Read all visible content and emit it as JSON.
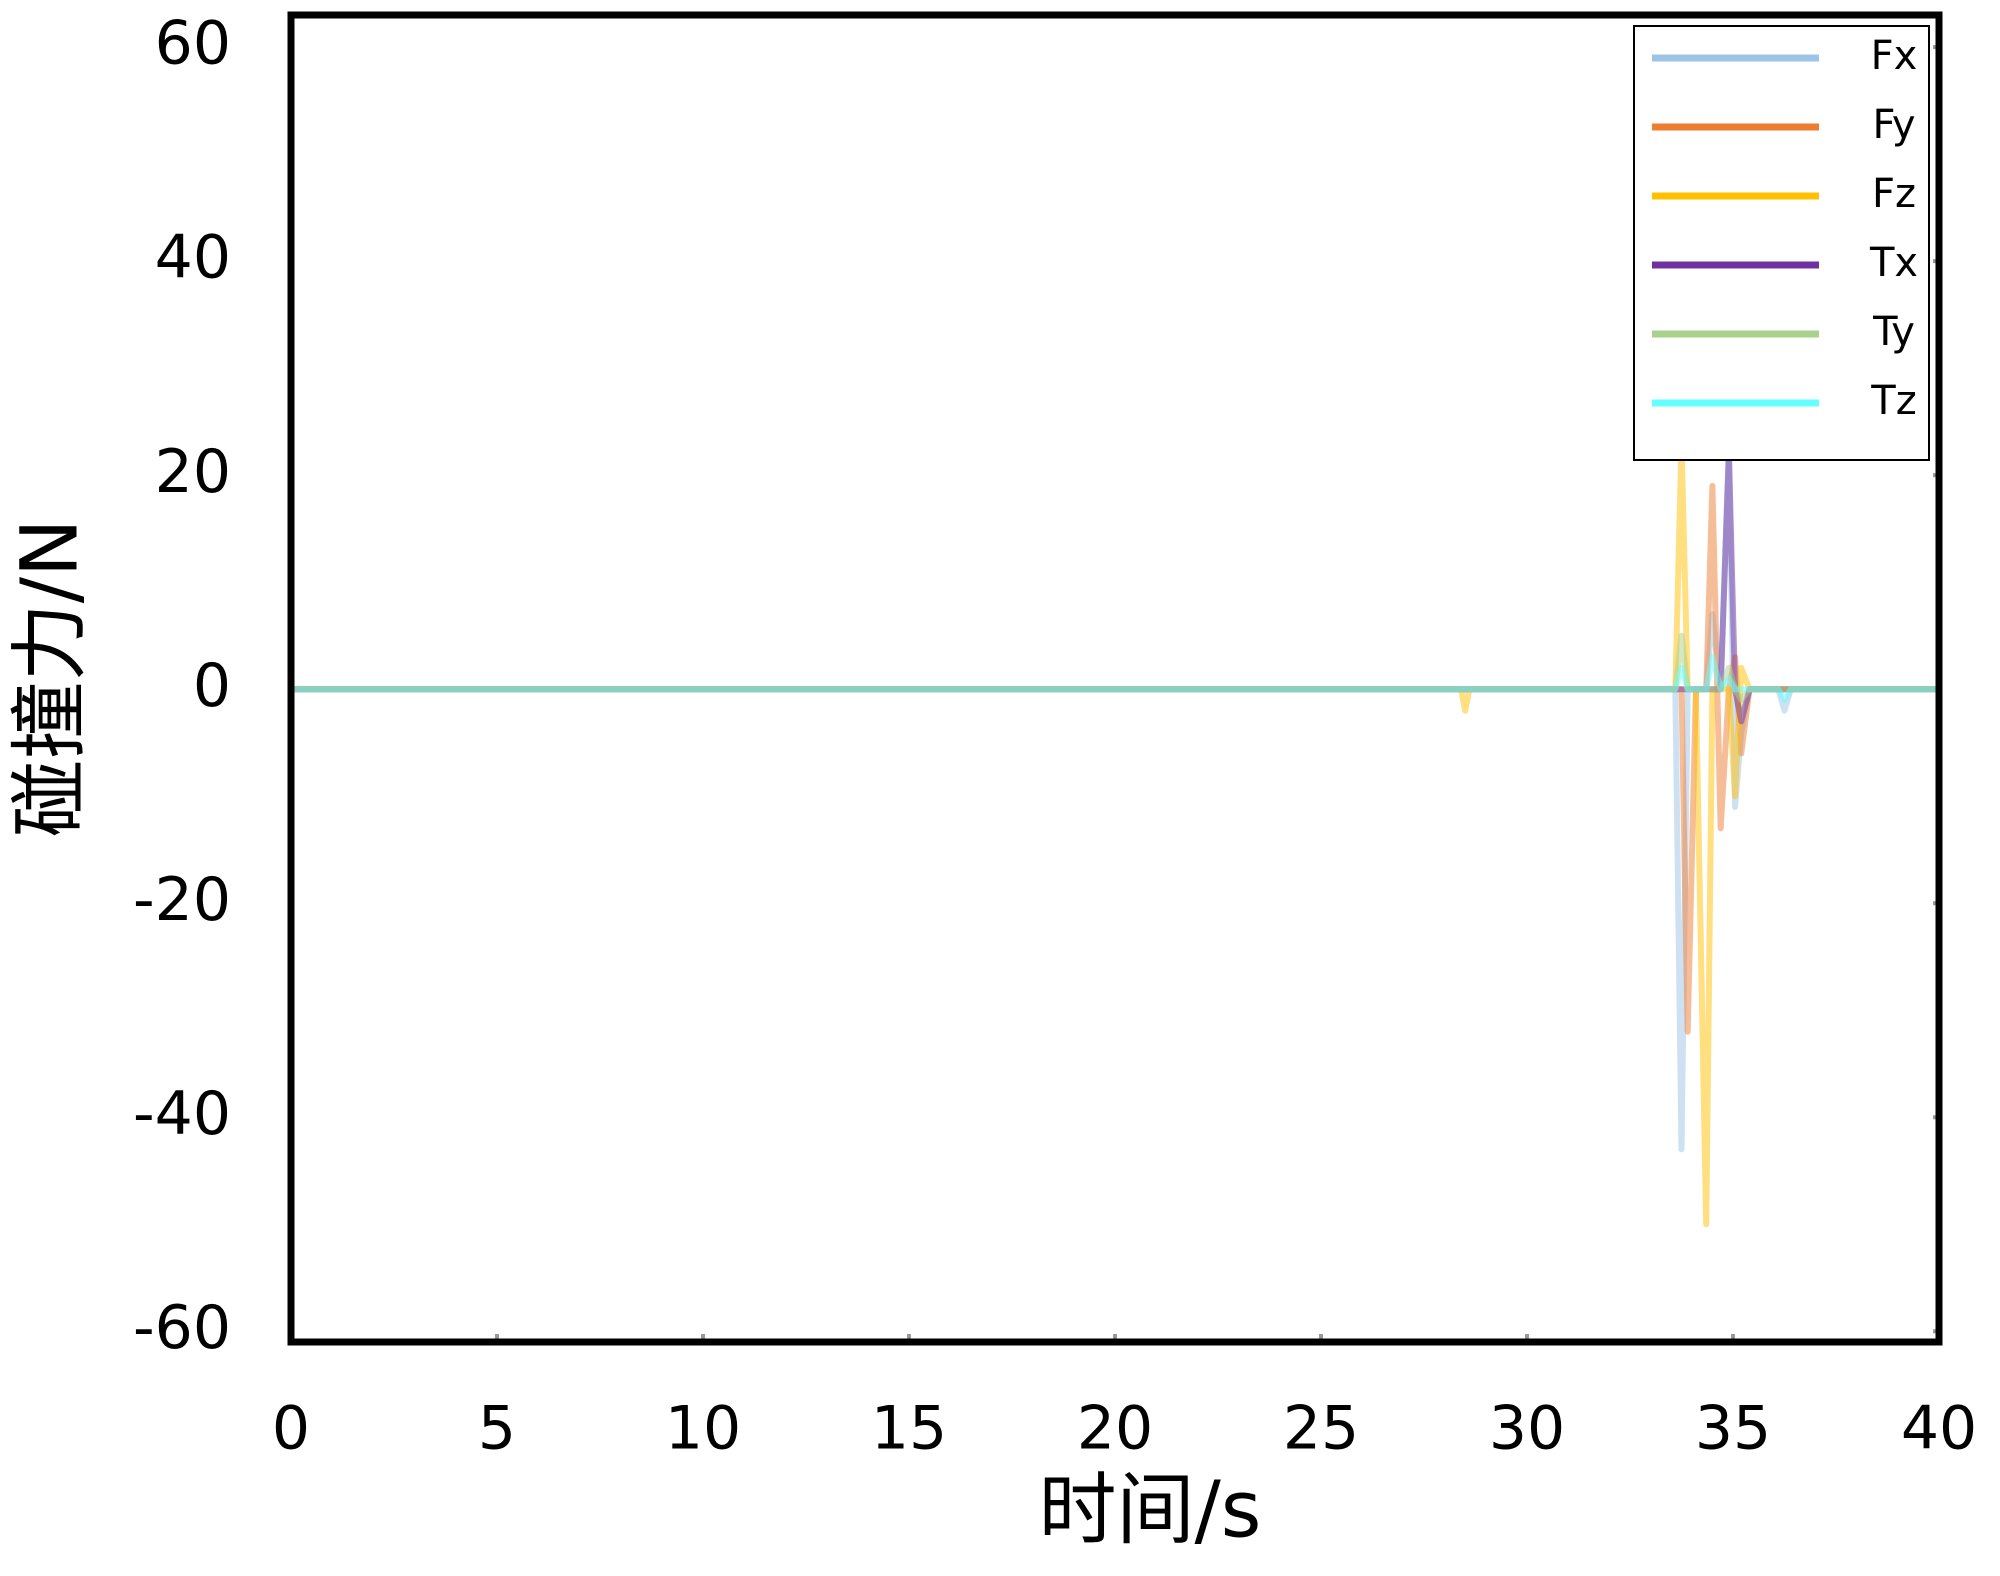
{
  "chart_data": {
    "type": "line",
    "xlabel": "时间/s",
    "ylabel": "碰撞力/N",
    "x": [
      0,
      28.4,
      28.5,
      28.6,
      33.6,
      33.75,
      33.9,
      34.1,
      34.35,
      34.5,
      34.7,
      34.9,
      35.05,
      35.2,
      35.4,
      36.1,
      36.25,
      36.4,
      40
    ],
    "series": [
      {
        "name": "Fx",
        "color": "#9dc3e6",
        "values": [
          0,
          0,
          0,
          0,
          0,
          -43,
          0,
          0,
          0,
          7,
          0,
          23,
          -11,
          -4,
          0,
          0,
          -2,
          0,
          0
        ]
      },
      {
        "name": "Fy",
        "color": "#ed7d31",
        "values": [
          0,
          0,
          0,
          0,
          0,
          0,
          -32,
          0,
          0,
          19,
          -13,
          0,
          3,
          -6,
          0,
          0,
          0,
          0,
          0
        ]
      },
      {
        "name": "Fz",
        "color": "#ffc000",
        "values": [
          0,
          0,
          -2,
          0,
          0,
          23,
          0,
          0,
          -50,
          0,
          0,
          0,
          -10,
          2,
          0,
          0,
          0,
          0,
          0
        ]
      },
      {
        "name": "Tx",
        "color": "#7030a0",
        "values": [
          0,
          0,
          0,
          0,
          0,
          0,
          0,
          0,
          0,
          0,
          0,
          22,
          0,
          -3,
          0,
          0,
          0,
          0,
          0
        ]
      },
      {
        "name": "Ty",
        "color": "#a9d18e",
        "values": [
          0,
          0,
          0,
          0,
          0,
          5,
          0,
          0,
          0,
          0,
          0,
          2,
          0,
          -1,
          0,
          0,
          0,
          0,
          0
        ]
      },
      {
        "name": "Tz",
        "color": "#66ffff",
        "values": [
          0,
          0,
          0,
          0,
          0,
          2,
          0,
          0,
          0,
          3,
          0,
          1,
          0,
          0,
          0,
          0,
          -1,
          0,
          0
        ]
      }
    ],
    "xlim": [
      0,
      40
    ],
    "xticks": [
      0,
      5,
      10,
      15,
      20,
      25,
      30,
      35,
      40
    ],
    "ylim": [
      -61,
      63
    ],
    "yticks": [
      -60,
      -40,
      -20,
      0,
      20,
      40,
      60
    ],
    "legend": "upper-right"
  }
}
